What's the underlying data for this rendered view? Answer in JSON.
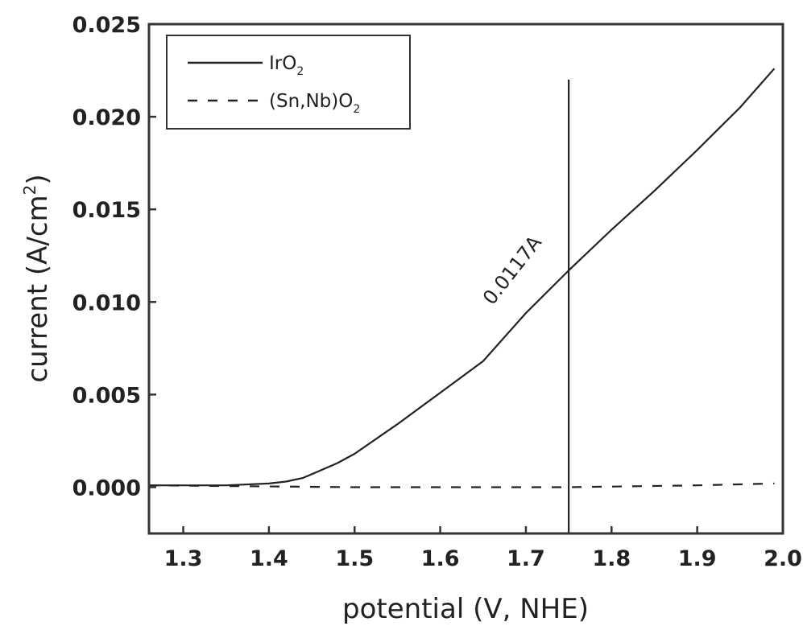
{
  "chart_data": {
    "type": "line",
    "xlabel": "potential (V, NHE)",
    "ylabel": "current (A/cm",
    "ylabel_sup": "2",
    "ylabel_close": ")",
    "xlim": [
      1.26,
      2.0
    ],
    "ylim": [
      -0.0025,
      0.025
    ],
    "x_ticks": [
      1.3,
      1.4,
      1.5,
      1.6,
      1.7,
      1.8,
      1.9,
      2.0
    ],
    "x_tick_labels": [
      "1.3",
      "1.4",
      "1.5",
      "1.6",
      "1.7",
      "1.8",
      "1.9",
      "2.0"
    ],
    "y_ticks": [
      0.0,
      0.005,
      0.01,
      0.015,
      0.02,
      0.025
    ],
    "y_tick_labels": [
      "0.000",
      "0.005",
      "0.010",
      "0.015",
      "0.020",
      "0.025"
    ],
    "legend_position": "top-left",
    "series": [
      {
        "name": "IrO",
        "name_sub": "2",
        "style": "solid",
        "x": [
          1.26,
          1.3,
          1.35,
          1.4,
          1.42,
          1.44,
          1.46,
          1.48,
          1.5,
          1.55,
          1.6,
          1.65,
          1.7,
          1.75,
          1.8,
          1.85,
          1.9,
          1.95,
          1.99
        ],
        "y": [
          0.0001,
          0.0001,
          0.0001,
          0.0002,
          0.0003,
          0.0005,
          0.0009,
          0.0013,
          0.0018,
          0.0034,
          0.0051,
          0.0068,
          0.0094,
          0.0117,
          0.0139,
          0.016,
          0.0182,
          0.0205,
          0.0226
        ]
      },
      {
        "name": "(Sn,Nb)O",
        "name_sub": "2",
        "style": "dashed",
        "x": [
          1.26,
          1.5,
          1.75,
          1.9,
          1.99
        ],
        "y": [
          0.0001,
          0.0,
          0.0,
          0.0001,
          0.0002
        ]
      }
    ],
    "vertical_line": {
      "x": 1.75,
      "y_top": 0.022
    },
    "annotation": {
      "text": "0.0117A",
      "x": 1.69,
      "y": 0.0115
    }
  }
}
